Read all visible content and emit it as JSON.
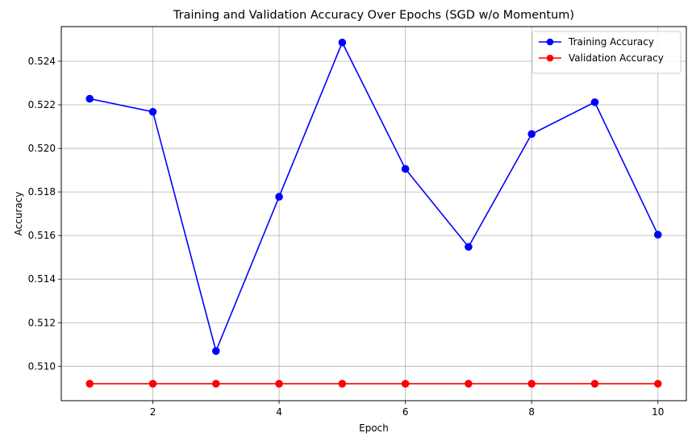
{
  "chart_data": {
    "type": "line",
    "title": "Training and Validation Accuracy Over Epochs (SGD w/o Momentum)",
    "xlabel": "Epoch",
    "ylabel": "Accuracy",
    "x": [
      1,
      2,
      3,
      4,
      5,
      6,
      7,
      8,
      9,
      10
    ],
    "xlim": [
      0.55,
      10.45
    ],
    "ylim": [
      0.50842,
      0.52559
    ],
    "xticks": [
      2,
      4,
      6,
      8,
      10
    ],
    "xtick_labels": [
      "2",
      "4",
      "6",
      "8",
      "10"
    ],
    "yticks": [
      0.51,
      0.512,
      0.514,
      0.516,
      0.518,
      0.52,
      0.522,
      0.524
    ],
    "ytick_labels": [
      "0.510",
      "0.512",
      "0.514",
      "0.516",
      "0.518",
      "0.520",
      "0.522",
      "0.524"
    ],
    "grid": true,
    "legend_position": "top-right",
    "series": [
      {
        "name": "Training Accuracy",
        "color": "#0000ff",
        "marker": "circle",
        "values": [
          0.52228,
          0.52168,
          0.5107,
          0.51778,
          0.52486,
          0.51906,
          0.51548,
          0.52066,
          0.52212,
          0.51604
        ]
      },
      {
        "name": "Validation Accuracy",
        "color": "#ff0000",
        "marker": "circle",
        "values": [
          0.5092,
          0.5092,
          0.5092,
          0.5092,
          0.5092,
          0.5092,
          0.5092,
          0.5092,
          0.5092,
          0.5092
        ]
      }
    ]
  }
}
